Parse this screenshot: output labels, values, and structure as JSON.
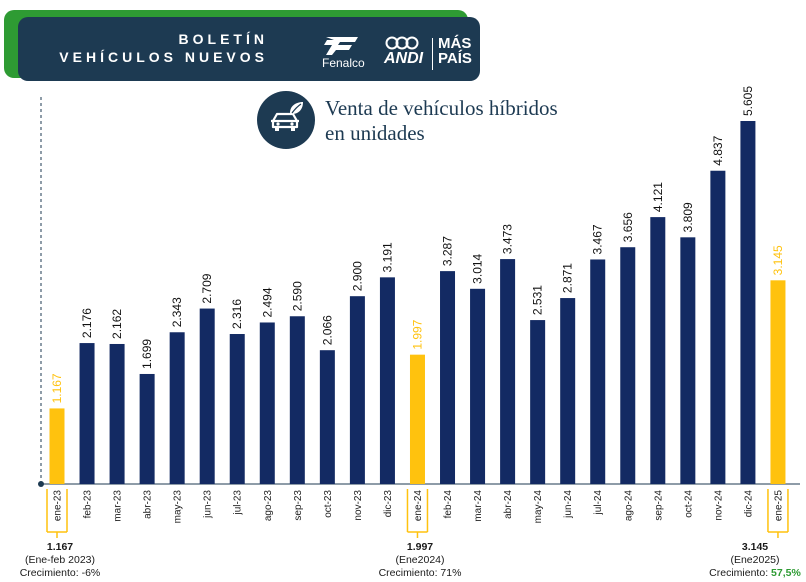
{
  "header": {
    "title_line1": "BOLETÍN",
    "title_line2": "VEHÍCULOS NUEVOS",
    "logo_fenalco": "Fenalco",
    "logo_andi": "ANDI",
    "logo_maspais_line1": "MÁS",
    "logo_maspais_line2": "PAÍS"
  },
  "chart_icon": "car-leaf-icon",
  "colors": {
    "bar_primary": "#132a63",
    "bar_highlight": "#ffc20e",
    "header_dark": "#1d3a52",
    "header_green": "#2e9b33",
    "growth_green": "#2e9b33"
  },
  "chart_data": {
    "type": "bar",
    "title_line1": "Venta de vehículos híbridos",
    "title_line2": "en unidades",
    "categories": [
      "ene-23",
      "feb-23",
      "mar-23",
      "abr-23",
      "may-23",
      "jun-23",
      "jul-23",
      "ago-23",
      "sep-23",
      "oct-23",
      "nov-23",
      "dic-23",
      "ene-24",
      "feb-24",
      "mar-24",
      "abr-24",
      "may-24",
      "jun-24",
      "jul-24",
      "ago-24",
      "sep-24",
      "oct-24",
      "nov-24",
      "dic-24",
      "ene-25"
    ],
    "values": [
      1167,
      2176,
      2162,
      1699,
      2343,
      2709,
      2316,
      2494,
      2590,
      2066,
      2900,
      3191,
      1997,
      3287,
      3014,
      3473,
      2531,
      2871,
      3467,
      3656,
      4121,
      3809,
      4837,
      5605,
      3145
    ],
    "value_labels": [
      "1.167",
      "2.176",
      "2.162",
      "1.699",
      "2.343",
      "2.709",
      "2.316",
      "2.494",
      "2.590",
      "2.066",
      "2.900",
      "3.191",
      "1.997",
      "3.287",
      "3.014",
      "3.473",
      "2.531",
      "2.871",
      "3.467",
      "3.656",
      "4.121",
      "3.809",
      "4.837",
      "5.605",
      "3.145"
    ],
    "highlighted_indices": [
      0,
      12,
      24
    ],
    "ylim": [
      0,
      5800
    ]
  },
  "notes": [
    {
      "value": "1.167",
      "period": "(Ene-feb 2023)",
      "growth_label": "Crecimiento:",
      "growth_value": "-6%"
    },
    {
      "value": "1.997",
      "period": "(Ene2024)",
      "growth_label": "Crecimiento:",
      "growth_value": "71%"
    },
    {
      "value": "3.145",
      "period": "(Ene2025)",
      "growth_label": "Crecimiento:",
      "growth_value": "57,5%"
    }
  ]
}
